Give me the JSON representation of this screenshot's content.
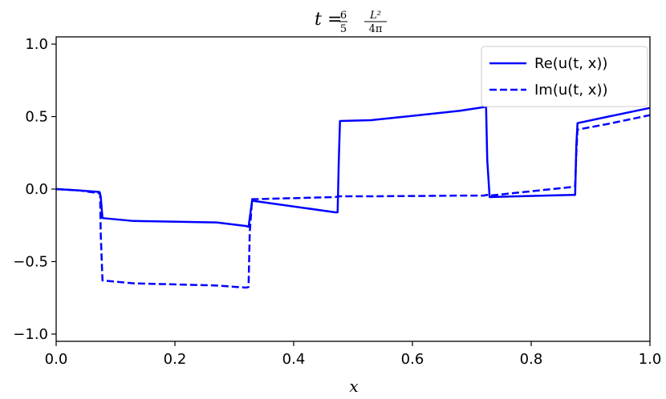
{
  "chart_data": {
    "type": "line",
    "title": {
      "lhs": "t",
      "eq": "=",
      "frac1_num": "6",
      "frac1_den": "5",
      "frac2_num": "L²",
      "frac2_den": "4π"
    },
    "xlabel": "x",
    "ylabel": "",
    "xlim": [
      0.0,
      1.0
    ],
    "ylim": [
      -1.05,
      1.05
    ],
    "xticks": [
      "0.0",
      "0.2",
      "0.4",
      "0.6",
      "0.8",
      "1.0"
    ],
    "yticks": [
      "−1.0",
      "−0.5",
      "0.0",
      "0.5",
      "1.0"
    ],
    "xtick_values": [
      0.0,
      0.2,
      0.4,
      0.6,
      0.8,
      1.0
    ],
    "ytick_values": [
      -1.0,
      -0.5,
      0.0,
      0.5,
      1.0
    ],
    "grid": false,
    "legend_position": "top-right",
    "series": [
      {
        "name": "Re(u(t, x))",
        "style": "solid",
        "color": "#0000ff",
        "x": [
          0.0,
          0.04,
          0.073,
          0.075,
          0.078,
          0.13,
          0.27,
          0.32,
          0.324,
          0.326,
          0.33,
          0.47,
          0.474,
          0.476,
          0.478,
          0.53,
          0.68,
          0.72,
          0.724,
          0.726,
          0.73,
          0.87,
          0.874,
          0.876,
          0.878,
          0.93,
          1.0
        ],
        "y": [
          0.0,
          -0.01,
          -0.02,
          -0.05,
          -0.2,
          -0.22,
          -0.23,
          -0.255,
          -0.26,
          -0.2,
          -0.08,
          -0.16,
          -0.16,
          0.2,
          0.47,
          0.475,
          0.54,
          0.565,
          0.57,
          0.2,
          -0.055,
          -0.04,
          -0.04,
          0.3,
          0.455,
          0.5,
          0.56
        ]
      },
      {
        "name": "Im(u(t, x))",
        "style": "dashed",
        "color": "#0000ff",
        "x": [
          0.0,
          0.04,
          0.074,
          0.075,
          0.078,
          0.13,
          0.27,
          0.32,
          0.324,
          0.326,
          0.33,
          0.47,
          0.476,
          0.53,
          0.68,
          0.72,
          0.726,
          0.73,
          0.87,
          0.874,
          0.876,
          0.878,
          0.93,
          1.0
        ],
        "y": [
          0.0,
          -0.01,
          -0.03,
          -0.3,
          -0.63,
          -0.65,
          -0.665,
          -0.68,
          -0.675,
          -0.3,
          -0.07,
          -0.055,
          -0.05,
          -0.05,
          -0.045,
          -0.045,
          -0.04,
          -0.045,
          0.015,
          0.02,
          0.25,
          0.41,
          0.45,
          0.51
        ]
      }
    ]
  }
}
